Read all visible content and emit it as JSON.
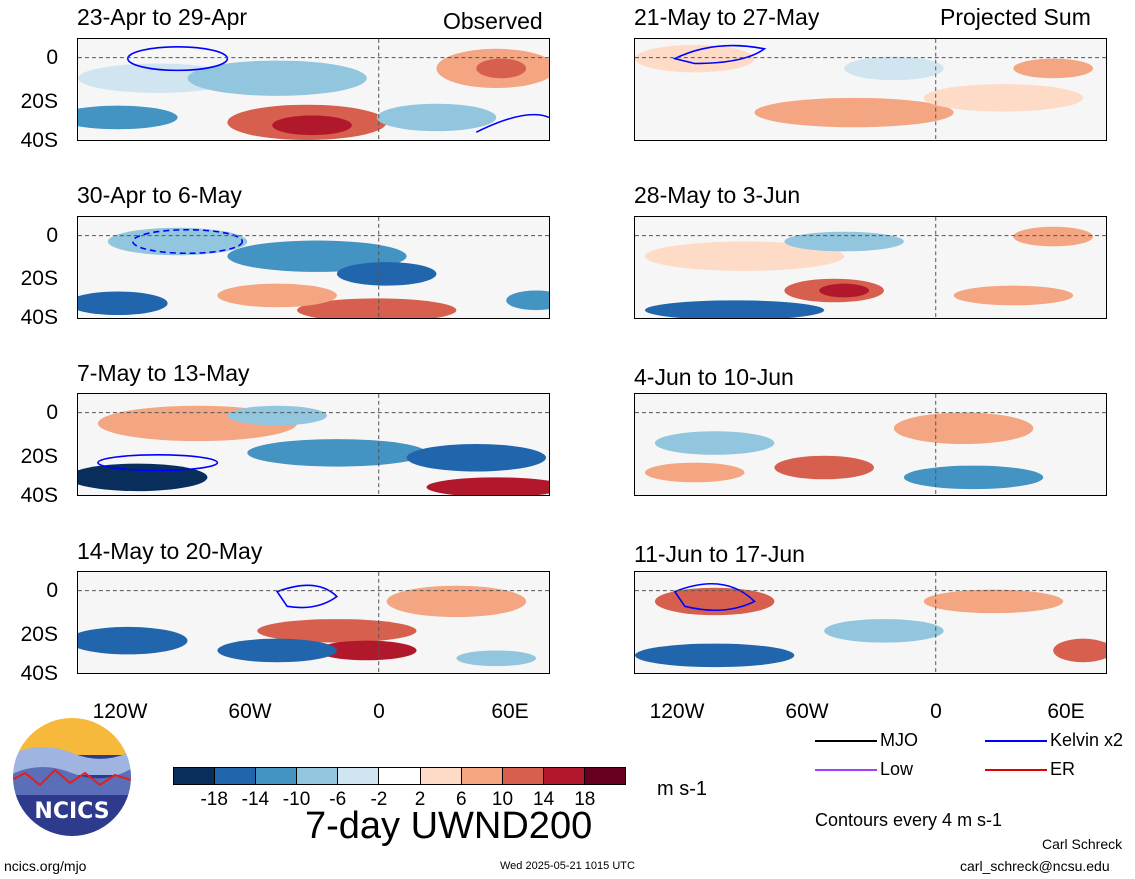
{
  "panels": [
    {
      "title": "23-Apr to 29-Apr",
      "right": "Observed"
    },
    {
      "title": "30-Apr to 6-May",
      "right": ""
    },
    {
      "title": "7-May to 13-May",
      "right": ""
    },
    {
      "title": "14-May to 20-May",
      "right": ""
    },
    {
      "title": "21-May to 27-May",
      "right": "Projected Sum"
    },
    {
      "title": "28-May to 3-Jun",
      "right": ""
    },
    {
      "title": "4-Jun to 10-Jun",
      "right": ""
    },
    {
      "title": "11-Jun to 17-Jun",
      "right": ""
    }
  ],
  "axes": {
    "y_labels": [
      "0",
      "20S",
      "40S"
    ],
    "x_labels": [
      "120W",
      "60W",
      "0",
      "60E"
    ]
  },
  "colorbar": {
    "labels": [
      "-18",
      "-14",
      "-10",
      "-6",
      "-2",
      "2",
      "6",
      "10",
      "14",
      "18"
    ],
    "colors": [
      "#0a2e5c",
      "#2166ac",
      "#4393c3",
      "#92c5de",
      "#d1e5f0",
      "#ffffff",
      "#fddbc7",
      "#f4a582",
      "#d6604d",
      "#b2182b",
      "#67001f"
    ],
    "units": "m s-1"
  },
  "title": "7-day UWND200",
  "legend": {
    "items": [
      {
        "label": "MJO",
        "color": "#000000"
      },
      {
        "label": "Kelvin x2",
        "color": "#0000ff"
      },
      {
        "label": "Low",
        "color": "#a040ff"
      },
      {
        "label": "ER",
        "color": "#e00000"
      }
    ],
    "contours": "Contours every 4 m s-1"
  },
  "footer": {
    "url": "ncics.org/mjo",
    "timestamp": "Wed 2025-05-21 1015 UTC",
    "author": "Carl Schreck",
    "email": "carl_schreck@ncsu.edu",
    "logo_text": "NCICS"
  }
}
